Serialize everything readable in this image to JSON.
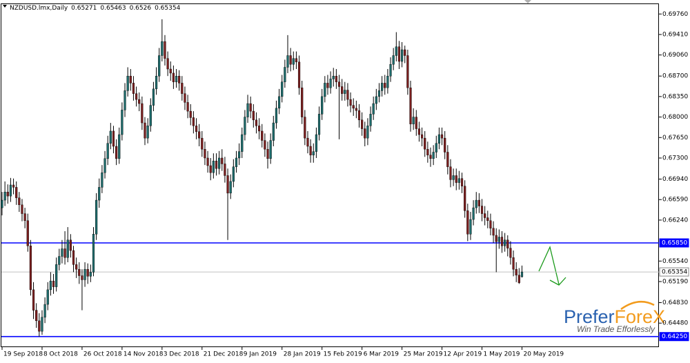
{
  "chart_data": {
    "type": "candlestick",
    "title": "NZDUSD.lmx,Daily",
    "categories": [
      "19 Sep 2018",
      null,
      null,
      null,
      null,
      null,
      null,
      null,
      null,
      null,
      null,
      null,
      null,
      null,
      "8 Oct 2018",
      null,
      null,
      null,
      null,
      null,
      null,
      null,
      null,
      null,
      null,
      null,
      null,
      null,
      "26 Oct 2018",
      null,
      null,
      null,
      null,
      null,
      null,
      null,
      null,
      null,
      null,
      null,
      null,
      null,
      "14 Nov 2018",
      null,
      null,
      null,
      null,
      null,
      null,
      null,
      null,
      null,
      null,
      null,
      null,
      null,
      "3 Dec 2018",
      null,
      null,
      null,
      null,
      null,
      null,
      null,
      null,
      null,
      null,
      null,
      null,
      null,
      "21 Dec 2018",
      null,
      null,
      null,
      null,
      null,
      null,
      null,
      null,
      null,
      null,
      null,
      null,
      null,
      "9 Jan 2019",
      null,
      null,
      null,
      null,
      null,
      null,
      null,
      null,
      null,
      null,
      null,
      null,
      null,
      "28 Jan 2019",
      null,
      null,
      null,
      null,
      null,
      null,
      null,
      null,
      null,
      null,
      null,
      null,
      null,
      "15 Feb 2019",
      null,
      null,
      null,
      null,
      null,
      null,
      null,
      null,
      null,
      null,
      null,
      null,
      null,
      "6 Mar 2019",
      null,
      null,
      null,
      null,
      null,
      null,
      null,
      null,
      null,
      null,
      null,
      null,
      null,
      "25 Mar 2019",
      null,
      null,
      null,
      null,
      null,
      null,
      null,
      null,
      null,
      null,
      null,
      null,
      null,
      "12 Apr 2019",
      null,
      null,
      null,
      null,
      null,
      null,
      null,
      null,
      null,
      null,
      null,
      null,
      null,
      "1 May 2019",
      null,
      null,
      null,
      null,
      null,
      null,
      null,
      null,
      null,
      null,
      null,
      null,
      null,
      "20 May 2019"
    ],
    "open": [
      0.6645,
      0.6658,
      0.6672,
      0.6665,
      0.6684,
      0.668,
      0.6662,
      0.665,
      0.6635,
      0.6623,
      0.658,
      0.6505,
      0.647,
      0.6452,
      0.6434,
      0.6458,
      0.648,
      0.6505,
      0.652,
      0.651,
      0.6548,
      0.6562,
      0.6575,
      0.656,
      0.659,
      0.6572,
      0.6548,
      0.654,
      0.6529,
      0.6522,
      0.654,
      0.6528,
      0.6535,
      0.66,
      0.6658,
      0.668,
      0.6705,
      0.6729,
      0.6755,
      0.6776,
      0.675,
      0.6729,
      0.677,
      0.6812,
      0.6845,
      0.687,
      0.6858,
      0.684,
      0.683,
      0.6823,
      0.679,
      0.6764,
      0.6785,
      0.682,
      0.6848,
      0.687,
      0.6905,
      0.6929,
      0.69,
      0.6882,
      0.6875,
      0.686,
      0.687,
      0.6858,
      0.684,
      0.6825,
      0.681,
      0.6799,
      0.6785,
      0.6775,
      0.6764,
      0.6745,
      0.673,
      0.6717,
      0.6705,
      0.6725,
      0.6712,
      0.673,
      0.672,
      0.67,
      0.667,
      0.669,
      0.6715,
      0.673,
      0.6741,
      0.677,
      0.68,
      0.6823,
      0.681,
      0.6795,
      0.6785,
      0.6776,
      0.676,
      0.6745,
      0.6729,
      0.676,
      0.679,
      0.6815,
      0.6835,
      0.686,
      0.6885,
      0.6905,
      0.689,
      0.69,
      0.6894,
      0.685,
      0.68,
      0.6764,
      0.675,
      0.6735,
      0.6741,
      0.677,
      0.6805,
      0.6835,
      0.6858,
      0.685,
      0.6865,
      0.687,
      0.686,
      0.6852,
      0.684,
      0.6846,
      0.683,
      0.682,
      0.6815,
      0.6811,
      0.6795,
      0.678,
      0.6764,
      0.6785,
      0.6805,
      0.6823,
      0.6835,
      0.6845,
      0.6858,
      0.685,
      0.687,
      0.689,
      0.6905,
      0.692,
      0.6895,
      0.6915,
      0.6905,
      0.685,
      0.6788,
      0.68,
      0.678,
      0.677,
      0.6764,
      0.6745,
      0.6735,
      0.6729,
      0.674,
      0.6755,
      0.677,
      0.6764,
      0.674,
      0.6715,
      0.6693,
      0.67,
      0.6688,
      0.6695,
      0.6682,
      0.664,
      0.66,
      0.6625,
      0.6645,
      0.6658,
      0.6648,
      0.6635,
      0.6628,
      0.6623,
      0.661,
      0.6598,
      0.6587,
      0.6595,
      0.658,
      0.659,
      0.6576,
      0.656,
      0.654,
      0.653,
      0.65271
    ],
    "high": [
      0.6672,
      0.669,
      0.6685,
      0.6696,
      0.6695,
      0.669,
      0.6672,
      0.666,
      0.6645,
      0.6635,
      0.659,
      0.6518,
      0.6482,
      0.6465,
      0.647,
      0.6492,
      0.6518,
      0.6535,
      0.6532,
      0.656,
      0.6575,
      0.659,
      0.6605,
      0.6612,
      0.66,
      0.658,
      0.656,
      0.6552,
      0.654,
      0.6552,
      0.655,
      0.6548,
      0.6612,
      0.667,
      0.6695,
      0.6718,
      0.6742,
      0.6768,
      0.679,
      0.6785,
      0.6762,
      0.6782,
      0.6825,
      0.6858,
      0.6885,
      0.6882,
      0.687,
      0.6852,
      0.6842,
      0.6835,
      0.68,
      0.6798,
      0.6832,
      0.686,
      0.6885,
      0.6918,
      0.6967,
      0.694,
      0.6912,
      0.6895,
      0.6888,
      0.6882,
      0.688,
      0.687,
      0.6852,
      0.6838,
      0.6822,
      0.681,
      0.6798,
      0.6788,
      0.6776,
      0.6758,
      0.6742,
      0.673,
      0.6738,
      0.6738,
      0.6742,
      0.6745,
      0.6732,
      0.6712,
      0.6702,
      0.6728,
      0.6742,
      0.6755,
      0.6782,
      0.6812,
      0.6838,
      0.6835,
      0.6822,
      0.6808,
      0.6798,
      0.6788,
      0.6772,
      0.6758,
      0.6772,
      0.6802,
      0.6828,
      0.6848,
      0.6872,
      0.6898,
      0.694,
      0.6918,
      0.6912,
      0.6912,
      0.6905,
      0.6862,
      0.6812,
      0.6776,
      0.6762,
      0.6755,
      0.6782,
      0.6818,
      0.6848,
      0.687,
      0.6872,
      0.6878,
      0.6884,
      0.6882,
      0.6872,
      0.6865,
      0.686,
      0.6858,
      0.6842,
      0.6832,
      0.6828,
      0.6822,
      0.6808,
      0.6792,
      0.6798,
      0.6818,
      0.6835,
      0.6848,
      0.6858,
      0.687,
      0.6872,
      0.6882,
      0.6902,
      0.6918,
      0.6945,
      0.693,
      0.6928,
      0.6922,
      0.6915,
      0.6862,
      0.6815,
      0.6812,
      0.6792,
      0.6782,
      0.6776,
      0.6758,
      0.6748,
      0.6752,
      0.6768,
      0.6782,
      0.6782,
      0.6776,
      0.6752,
      0.6728,
      0.6712,
      0.6712,
      0.6708,
      0.6705,
      0.6692,
      0.6652,
      0.6638,
      0.6658,
      0.6672,
      0.667,
      0.666,
      0.6648,
      0.664,
      0.6635,
      0.6622,
      0.661,
      0.6608,
      0.6605,
      0.6602,
      0.6598,
      0.6588,
      0.6572,
      0.6552,
      0.6542,
      0.65463
    ],
    "low": [
      0.6632,
      0.6648,
      0.6652,
      0.6655,
      0.6668,
      0.665,
      0.6638,
      0.6622,
      0.661,
      0.657,
      0.6495,
      0.6455,
      0.644,
      0.6425,
      0.6428,
      0.6448,
      0.647,
      0.6495,
      0.6498,
      0.6502,
      0.6538,
      0.655,
      0.6548,
      0.6552,
      0.656,
      0.6535,
      0.6525,
      0.6515,
      0.647,
      0.651,
      0.6515,
      0.6518,
      0.6528,
      0.659,
      0.6645,
      0.667,
      0.6695,
      0.6718,
      0.6745,
      0.6738,
      0.6718,
      0.672,
      0.676,
      0.68,
      0.6835,
      0.6845,
      0.6828,
      0.6818,
      0.681,
      0.6778,
      0.6752,
      0.6755,
      0.6775,
      0.681,
      0.6838,
      0.686,
      0.6895,
      0.6888,
      0.687,
      0.6862,
      0.6848,
      0.685,
      0.6845,
      0.6828,
      0.6812,
      0.6798,
      0.6786,
      0.6772,
      0.6762,
      0.675,
      0.6732,
      0.6718,
      0.6705,
      0.6692,
      0.6695,
      0.67,
      0.6702,
      0.6708,
      0.6688,
      0.659,
      0.666,
      0.668,
      0.6705,
      0.6718,
      0.673,
      0.676,
      0.679,
      0.6798,
      0.6782,
      0.6772,
      0.6762,
      0.6748,
      0.6732,
      0.6712,
      0.672,
      0.675,
      0.678,
      0.6805,
      0.6825,
      0.685,
      0.6875,
      0.6878,
      0.688,
      0.6882,
      0.6838,
      0.6788,
      0.6752,
      0.6738,
      0.6722,
      0.6722,
      0.673,
      0.676,
      0.6795,
      0.6825,
      0.6838,
      0.684,
      0.6852,
      0.6848,
      0.6762,
      0.6828,
      0.6828,
      0.6818,
      0.6808,
      0.6802,
      0.6798,
      0.6782,
      0.6768,
      0.675,
      0.6752,
      0.6775,
      0.6795,
      0.6812,
      0.6825,
      0.6835,
      0.6838,
      0.684,
      0.686,
      0.688,
      0.6895,
      0.6882,
      0.6885,
      0.6892,
      0.6838,
      0.6775,
      0.6778,
      0.6768,
      0.6758,
      0.675,
      0.6732,
      0.6722,
      0.6715,
      0.6718,
      0.673,
      0.6745,
      0.6752,
      0.6728,
      0.6702,
      0.668,
      0.6682,
      0.6675,
      0.6676,
      0.667,
      0.6628,
      0.6588,
      0.659,
      0.6615,
      0.6635,
      0.6636,
      0.6622,
      0.6615,
      0.661,
      0.6598,
      0.6585,
      0.6535,
      0.6575,
      0.6568,
      0.657,
      0.6562,
      0.6548,
      0.6528,
      0.6518,
      0.6515,
      0.6526
    ],
    "close": [
      0.6658,
      0.6672,
      0.6665,
      0.6684,
      0.668,
      0.6662,
      0.665,
      0.6635,
      0.6623,
      0.658,
      0.6505,
      0.647,
      0.6452,
      0.6434,
      0.6458,
      0.648,
      0.6505,
      0.652,
      0.651,
      0.6548,
      0.6562,
      0.6575,
      0.656,
      0.659,
      0.6572,
      0.6548,
      0.654,
      0.6529,
      0.6522,
      0.654,
      0.6528,
      0.6535,
      0.66,
      0.6658,
      0.668,
      0.6705,
      0.6729,
      0.6755,
      0.6776,
      0.675,
      0.6729,
      0.677,
      0.6812,
      0.6845,
      0.687,
      0.6858,
      0.684,
      0.683,
      0.6823,
      0.679,
      0.6764,
      0.6785,
      0.682,
      0.6848,
      0.687,
      0.6905,
      0.6929,
      0.69,
      0.6882,
      0.6875,
      0.686,
      0.687,
      0.6858,
      0.684,
      0.6825,
      0.681,
      0.6799,
      0.6785,
      0.6775,
      0.6764,
      0.6745,
      0.673,
      0.6717,
      0.6705,
      0.6725,
      0.6712,
      0.673,
      0.672,
      0.67,
      0.667,
      0.669,
      0.6715,
      0.673,
      0.6741,
      0.677,
      0.68,
      0.6823,
      0.681,
      0.6795,
      0.6785,
      0.6776,
      0.676,
      0.6745,
      0.6729,
      0.676,
      0.679,
      0.6815,
      0.6835,
      0.686,
      0.6885,
      0.6905,
      0.689,
      0.69,
      0.6894,
      0.685,
      0.68,
      0.6764,
      0.675,
      0.6735,
      0.6741,
      0.677,
      0.6805,
      0.6835,
      0.6858,
      0.685,
      0.6865,
      0.687,
      0.686,
      0.6852,
      0.684,
      0.6846,
      0.683,
      0.682,
      0.6815,
      0.6811,
      0.6795,
      0.678,
      0.6764,
      0.6785,
      0.6805,
      0.6823,
      0.6835,
      0.6845,
      0.6858,
      0.685,
      0.687,
      0.689,
      0.6905,
      0.692,
      0.6895,
      0.6915,
      0.6905,
      0.685,
      0.6788,
      0.68,
      0.678,
      0.677,
      0.6764,
      0.6745,
      0.6735,
      0.6729,
      0.674,
      0.6755,
      0.677,
      0.6764,
      0.674,
      0.6715,
      0.6693,
      0.67,
      0.6688,
      0.6695,
      0.6682,
      0.664,
      0.66,
      0.6625,
      0.6645,
      0.6658,
      0.6648,
      0.6635,
      0.6628,
      0.6623,
      0.661,
      0.6598,
      0.6587,
      0.6595,
      0.658,
      0.659,
      0.6576,
      0.656,
      0.654,
      0.653,
      0.6517,
      0.65354
    ],
    "up_color": "#1d6b6b",
    "down_color": "#7a1e1e",
    "ylim": [
      0.6407,
      0.6994
    ],
    "yticks": [
      {
        "value": 0.6976,
        "label": "0.69760"
      },
      {
        "value": 0.6941,
        "label": "0.69410"
      },
      {
        "value": 0.6906,
        "label": "0.69060"
      },
      {
        "value": 0.687,
        "label": "0.68700"
      },
      {
        "value": 0.6835,
        "label": "0.68350"
      },
      {
        "value": 0.68,
        "label": "0.68000"
      },
      {
        "value": 0.6765,
        "label": "0.67650"
      },
      {
        "value": 0.673,
        "label": "0.67300"
      },
      {
        "value": 0.6694,
        "label": "0.66940"
      },
      {
        "value": 0.6659,
        "label": "0.66590"
      },
      {
        "value": 0.6624,
        "label": "0.66240"
      },
      {
        "value": 0.6554,
        "label": "0.65540"
      },
      {
        "value": 0.6519,
        "label": "0.65190"
      },
      {
        "value": 0.6483,
        "label": "0.64830"
      },
      {
        "value": 0.6448,
        "label": "0.64480"
      }
    ],
    "hlines": [
      {
        "value": 0.6585,
        "label": "0.65850",
        "color": "#0000ff"
      },
      {
        "value": 0.65354,
        "label": "0.65354",
        "color": "#c0c0c0"
      },
      {
        "value": 0.6425,
        "label": "0.64250",
        "color": "#0000ff"
      }
    ]
  },
  "logo": {
    "brand_1": "Prefer",
    "brand_2": "ForeX",
    "tagline": "Win Trade Efforlessly"
  }
}
